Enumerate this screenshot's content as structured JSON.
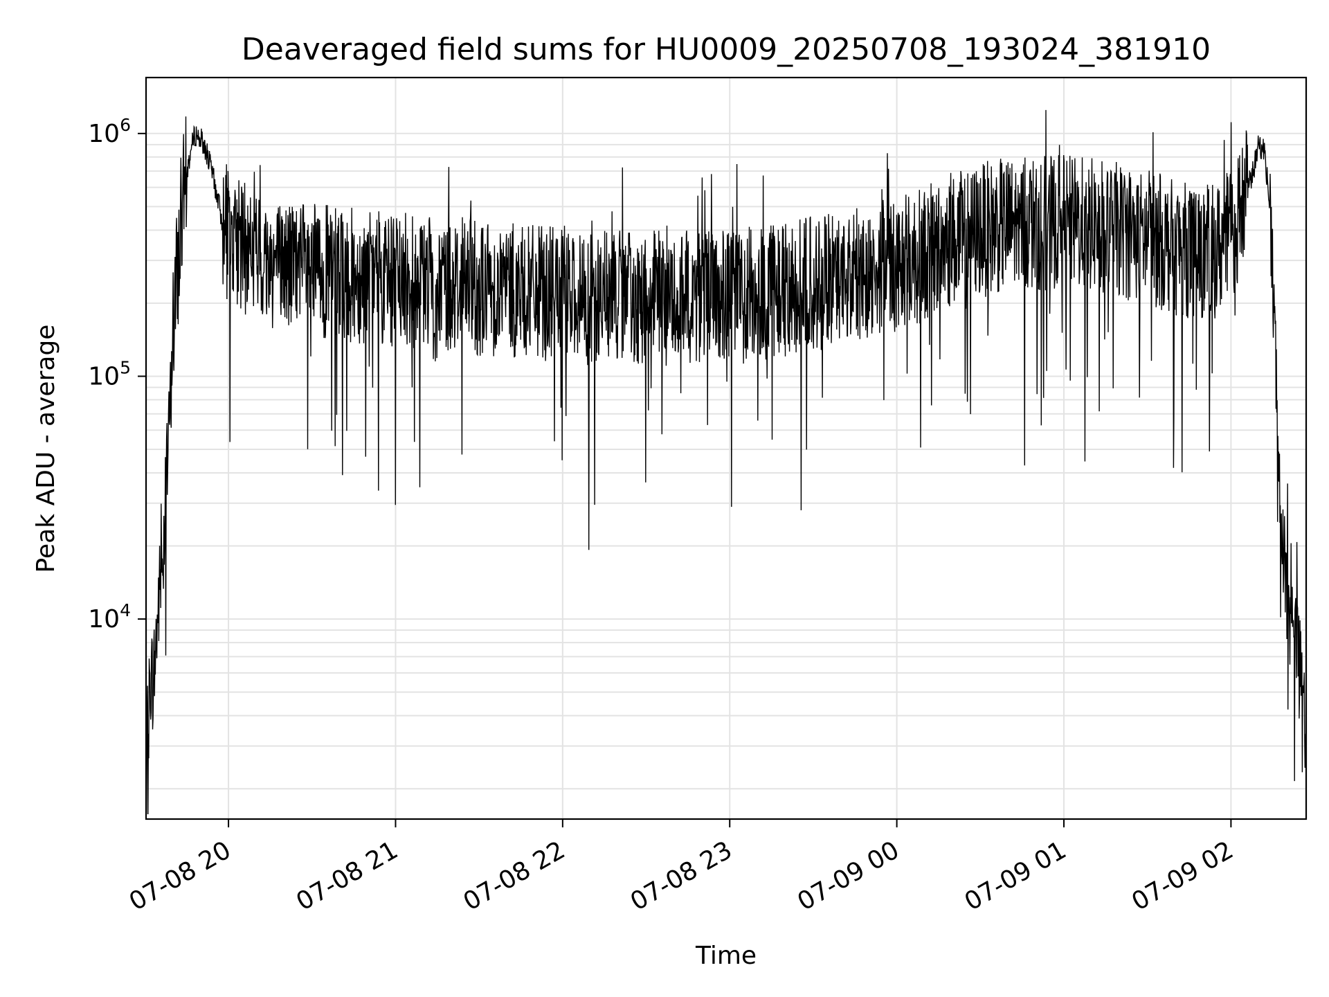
{
  "chart_data": {
    "type": "line",
    "title": "Deaveraged field sums for HU0009_20250708_193024_381910",
    "xlabel": "Time",
    "ylabel": "Peak ADU - average",
    "xscale": "time",
    "yscale": "log",
    "xlim": [
      "2025-07-08 19:30:24",
      "2025-07-09 02:27:00"
    ],
    "ylim": [
      1500,
      1700000
    ],
    "grid": true,
    "line_color": "#000000",
    "x_ticks": [
      {
        "t": "2025-07-08 20:00",
        "label": "07-08 20"
      },
      {
        "t": "2025-07-08 21:00",
        "label": "07-08 21"
      },
      {
        "t": "2025-07-08 22:00",
        "label": "07-08 22"
      },
      {
        "t": "2025-07-08 23:00",
        "label": "07-08 23"
      },
      {
        "t": "2025-07-09 00:00",
        "label": "07-09 00"
      },
      {
        "t": "2025-07-09 01:00",
        "label": "07-09 01"
      },
      {
        "t": "2025-07-09 02:00",
        "label": "07-09 02"
      }
    ],
    "y_ticks": [
      {
        "value": 10000,
        "base": "10",
        "exp": "4"
      },
      {
        "value": 100000,
        "base": "10",
        "exp": "5"
      },
      {
        "value": 1000000,
        "base": "10",
        "exp": "6"
      }
    ],
    "series": [
      {
        "x": [
          "2025-07-08 19:30:24",
          "2025-07-08 19:32:00",
          "2025-07-08 19:33:00",
          "2025-07-08 19:34:00",
          "2025-07-08 19:35:00",
          "2025-07-08 19:36:00",
          "2025-07-08 19:37:00",
          "2025-07-08 19:38:00",
          "2025-07-08 19:39:00",
          "2025-07-08 19:40:00",
          "2025-07-08 19:42:00",
          "2025-07-08 19:44:00",
          "2025-07-08 19:46:00",
          "2025-07-08 19:48:00",
          "2025-07-08 19:50:00",
          "2025-07-08 19:52:00",
          "2025-07-08 19:54:00",
          "2025-07-08 19:56:00",
          "2025-07-08 19:58:00",
          "2025-07-08 20:00:00",
          "2025-07-08 20:03:00",
          "2025-07-08 20:06:00",
          "2025-07-08 20:09:00",
          "2025-07-08 20:12:00",
          "2025-07-08 20:15:00",
          "2025-07-08 20:18:00",
          "2025-07-08 20:21:00",
          "2025-07-08 20:24:00",
          "2025-07-08 20:27:00",
          "2025-07-08 20:30:00",
          "2025-07-08 20:35:00",
          "2025-07-08 20:40:00",
          "2025-07-08 20:45:00",
          "2025-07-08 20:50:00",
          "2025-07-08 20:55:00",
          "2025-07-08 21:00:00",
          "2025-07-08 21:05:00",
          "2025-07-08 21:10:00",
          "2025-07-08 21:15:00",
          "2025-07-08 21:20:00",
          "2025-07-08 21:25:00",
          "2025-07-08 21:30:00",
          "2025-07-08 21:35:00",
          "2025-07-08 21:40:00",
          "2025-07-08 21:45:00",
          "2025-07-08 21:50:00",
          "2025-07-08 21:55:00",
          "2025-07-08 22:00:00",
          "2025-07-08 22:10:00",
          "2025-07-08 22:20:00",
          "2025-07-08 22:30:00",
          "2025-07-08 22:40:00",
          "2025-07-08 22:50:00",
          "2025-07-08 23:00:00",
          "2025-07-08 23:10:00",
          "2025-07-08 23:20:00",
          "2025-07-08 23:30:00",
          "2025-07-08 23:40:00",
          "2025-07-08 23:50:00",
          "2025-07-09 00:00:00",
          "2025-07-09 00:10:00",
          "2025-07-09 00:20:00",
          "2025-07-09 00:30:00",
          "2025-07-09 00:40:00",
          "2025-07-09 00:50:00",
          "2025-07-09 01:00:00",
          "2025-07-09 01:10:00",
          "2025-07-09 01:20:00",
          "2025-07-09 01:30:00",
          "2025-07-09 01:40:00",
          "2025-07-09 01:50:00",
          "2025-07-09 01:55:00",
          "2025-07-09 02:00:00",
          "2025-07-09 02:04:00",
          "2025-07-09 02:08:00",
          "2025-07-09 02:10:00",
          "2025-07-09 02:12:00",
          "2025-07-09 02:14:00",
          "2025-07-09 02:16:00",
          "2025-07-09 02:18:00",
          "2025-07-09 02:20:00",
          "2025-07-09 02:22:00",
          "2025-07-09 02:24:00",
          "2025-07-09 02:26:00",
          "2025-07-09 02:27:00"
        ],
        "y": [
          2300,
          6000,
          5500,
          8000,
          12000,
          16000,
          24000,
          42000,
          70000,
          150000,
          300000,
          550000,
          800000,
          1000000,
          950000,
          850000,
          700000,
          550000,
          420000,
          380000,
          350000,
          330000,
          320000,
          300000,
          300000,
          290000,
          290000,
          280000,
          280000,
          270000,
          270000,
          260000,
          260000,
          260000,
          250000,
          250000,
          250000,
          240000,
          240000,
          240000,
          240000,
          230000,
          230000,
          230000,
          220000,
          220000,
          220000,
          220000,
          210000,
          210000,
          210000,
          210000,
          210000,
          210000,
          220000,
          230000,
          240000,
          250000,
          270000,
          290000,
          320000,
          360000,
          400000,
          420000,
          430000,
          430000,
          420000,
          400000,
          370000,
          340000,
          320000,
          330000,
          380000,
          500000,
          700000,
          900000,
          850000,
          500000,
          120000,
          30000,
          12000,
          9000,
          7000,
          5000,
          2500
        ]
      }
    ]
  }
}
